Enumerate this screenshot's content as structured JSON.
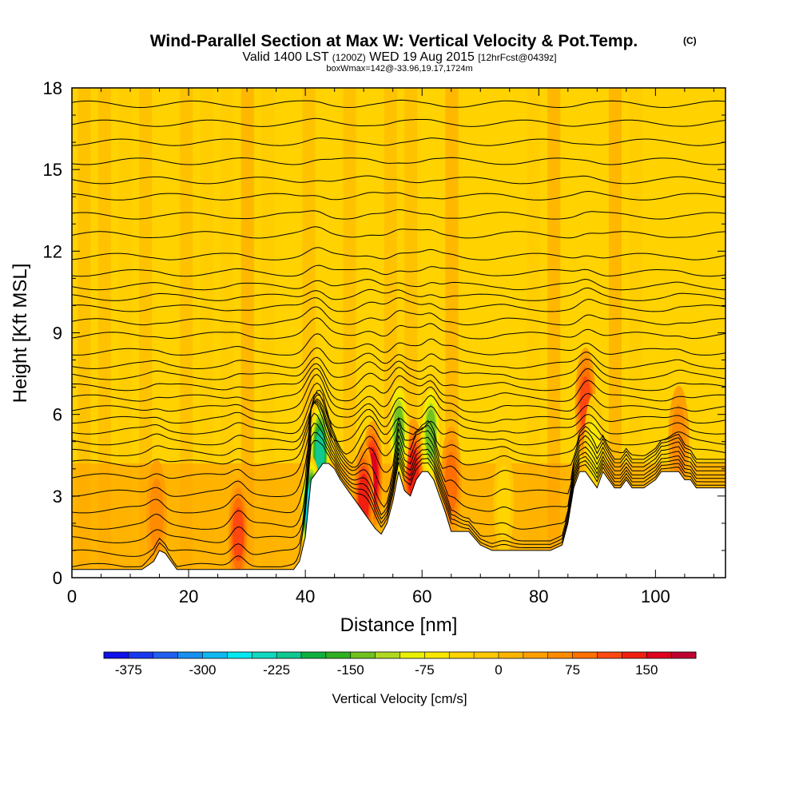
{
  "chart_data": {
    "type": "heatmap",
    "title": "Wind-Parallel Section at Max W: Vertical Velocity & Pot.Temp.",
    "title_mark": "(C)",
    "subtitle_parts": [
      "Valid 1400 LST ",
      "(1200Z)",
      " WED 19 Aug 2015 ",
      "[12hrFcst@0439z]"
    ],
    "subtitle2": "boxWmax=142@-33.96,19.17,1724m",
    "xlabel": "Distance [nm]",
    "ylabel": "Height [Kft MSL]",
    "xlim": [
      0,
      112
    ],
    "ylim": [
      0,
      18
    ],
    "xticks": [
      0,
      20,
      40,
      60,
      80,
      100
    ],
    "yticks": [
      0,
      3,
      6,
      9,
      12,
      15,
      18
    ],
    "colorbar": {
      "label": "Vertical Velocity [cm/s]",
      "min": -400,
      "max": 200,
      "tick_values": [
        -375,
        -300,
        -225,
        -150,
        -75,
        0,
        75,
        150
      ],
      "tick_labels": [
        "-375",
        "-300",
        "-225",
        "-150",
        "-75",
        "0",
        "75",
        "150"
      ],
      "colors": [
        "#1010e8",
        "#1838f0",
        "#2060f0",
        "#1890f0",
        "#10b8f0",
        "#00e8f0",
        "#10d8c0",
        "#10c890",
        "#10b040",
        "#30b020",
        "#70c020",
        "#b0d820",
        "#e8f000",
        "#f8e800",
        "#ffd400",
        "#ffc800",
        "#ffb400",
        "#ffa000",
        "#ff8c00",
        "#ff7000",
        "#ff4810",
        "#f02010",
        "#e00020",
        "#c00030"
      ]
    },
    "terrain": {
      "x": [
        0,
        2,
        4,
        6,
        8,
        10,
        12,
        14,
        15,
        16,
        18,
        20,
        22,
        24,
        26,
        28,
        30,
        32,
        34,
        36,
        38,
        39,
        40,
        41,
        42,
        43,
        44,
        45,
        46,
        47,
        48,
        49,
        50,
        51,
        52,
        53,
        54,
        55,
        56,
        57,
        58,
        59,
        60,
        61,
        62,
        63,
        64,
        65,
        66,
        68,
        70,
        72,
        74,
        76,
        78,
        80,
        82,
        84,
        85,
        86,
        87,
        88,
        89,
        90,
        91,
        92,
        93,
        94,
        95,
        96,
        98,
        100,
        101,
        102,
        103,
        104,
        105,
        106,
        107,
        108,
        110,
        112
      ],
      "height_kft": [
        0.3,
        0.3,
        0.3,
        0.3,
        0.3,
        0.3,
        0.3,
        0.6,
        1.0,
        0.9,
        0.3,
        0.3,
        0.3,
        0.3,
        0.3,
        0.3,
        0.3,
        0.3,
        0.3,
        0.3,
        0.3,
        0.6,
        1.5,
        3.6,
        3.9,
        4.2,
        4.2,
        4.0,
        3.6,
        3.3,
        3.0,
        2.7,
        2.4,
        2.1,
        1.8,
        1.6,
        2.0,
        2.8,
        3.9,
        3.2,
        3.0,
        3.6,
        3.9,
        3.9,
        3.6,
        3.0,
        2.4,
        1.7,
        1.7,
        1.7,
        1.2,
        1.0,
        1.0,
        1.0,
        1.0,
        1.0,
        1.0,
        1.2,
        2.0,
        3.3,
        3.9,
        3.9,
        3.6,
        3.3,
        3.9,
        3.6,
        3.3,
        3.3,
        3.6,
        3.3,
        3.3,
        3.6,
        3.9,
        3.9,
        3.9,
        3.9,
        3.6,
        3.6,
        3.3,
        3.3,
        3.3,
        3.3
      ]
    },
    "updraft_cores": [
      {
        "x": 14.5,
        "z": 2.3,
        "w": 60
      },
      {
        "x": 28.5,
        "z": 1.6,
        "w": 95
      },
      {
        "x": 42.5,
        "z": 4.6,
        "w": -215
      },
      {
        "x": 41.0,
        "z": 2.4,
        "w": -300
      },
      {
        "x": 51.5,
        "z": 3.7,
        "w": 142
      },
      {
        "x": 50.0,
        "z": 2.9,
        "w": 130
      },
      {
        "x": 58.5,
        "z": 3.8,
        "w": 125
      },
      {
        "x": 56.0,
        "z": 5.4,
        "w": -160
      },
      {
        "x": 61.5,
        "z": 5.3,
        "w": -150
      },
      {
        "x": 65.0,
        "z": 3.5,
        "w": 80
      },
      {
        "x": 88.0,
        "z": 6.4,
        "w": 95
      },
      {
        "x": 89.5,
        "z": 4.7,
        "w": -70
      },
      {
        "x": 74.0,
        "z": 2.8,
        "w": -40
      },
      {
        "x": 104.0,
        "z": 5.0,
        "w": 40
      }
    ],
    "theta_contour_base_heights_kft": [
      0.4,
      0.9,
      1.4,
      1.9,
      2.5,
      3.1,
      3.7,
      4.2,
      4.6,
      5.0,
      5.4,
      5.8,
      6.2,
      6.6,
      7.0,
      7.4,
      7.8,
      8.3,
      8.9,
      9.4,
      9.9,
      10.3,
      10.7,
      11.2,
      11.8,
      12.6,
      13.3,
      14.0,
      14.6,
      15.3,
      16.0,
      16.7,
      17.4
    ]
  }
}
